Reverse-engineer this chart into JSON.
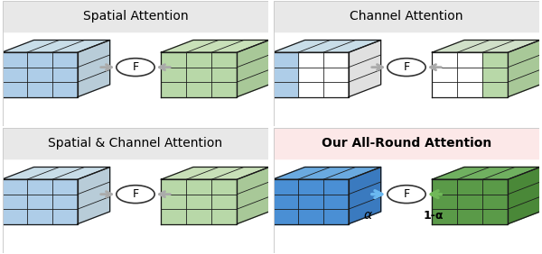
{
  "panels": [
    {
      "title": "Spatial Attention",
      "bg": "#e8e8e8",
      "row": 0,
      "col": 0,
      "type": "full_both",
      "left_cube": {
        "face_color": "#aecde8",
        "top_color": "#c8dde8",
        "right_color": "#b8ccd8"
      },
      "right_cube": {
        "face_color": "#b8d8a8",
        "top_color": "#c8e0b8",
        "right_color": "#a8c898"
      },
      "arrow_left_color": "#aaaaaa",
      "arrow_right_color": "#aaaaaa"
    },
    {
      "title": "Channel Attention",
      "bg": "#e8e8e8",
      "row": 0,
      "col": 1,
      "type": "channel",
      "left_cube": {
        "face_color": "#aecde8",
        "top_color": "#c8dde8",
        "right_color": "#e0e0e0"
      },
      "right_cube": {
        "face_color": "#b8d8a8",
        "top_color": "#c8e0b8",
        "right_color": "#a8c898"
      },
      "arrow_left_color": "#aaaaaa",
      "arrow_right_color": "#aaaaaa"
    },
    {
      "title": "Spatial & Channel Attention",
      "bg": "#e8e8e8",
      "row": 1,
      "col": 0,
      "type": "full_both",
      "left_cube": {
        "face_color": "#aecde8",
        "top_color": "#c8dde8",
        "right_color": "#b8ccd8"
      },
      "right_cube": {
        "face_color": "#b8d8a8",
        "top_color": "#c8e0b8",
        "right_color": "#a8c898"
      },
      "arrow_left_color": "#aaaaaa",
      "arrow_right_color": "#aaaaaa"
    },
    {
      "title": "Our All-Round Attention",
      "bg": "#fce8e8",
      "row": 1,
      "col": 1,
      "type": "allround",
      "left_cube": {
        "face_color": "#4a8fd4",
        "top_color": "#6aaae0",
        "right_color": "#3a7abf"
      },
      "right_cube": {
        "face_color": "#5a9a48",
        "top_color": "#70b060",
        "right_color": "#4a8838"
      },
      "arrow_left_color": "#6ab8f0",
      "arrow_right_color": "#70b858",
      "alpha_label": "α",
      "one_minus_alpha_label": "1-α"
    }
  ],
  "title_fontsize": 10,
  "f_fontsize": 9,
  "label_fontsize": 9,
  "edge_color": "#1a1a1a"
}
